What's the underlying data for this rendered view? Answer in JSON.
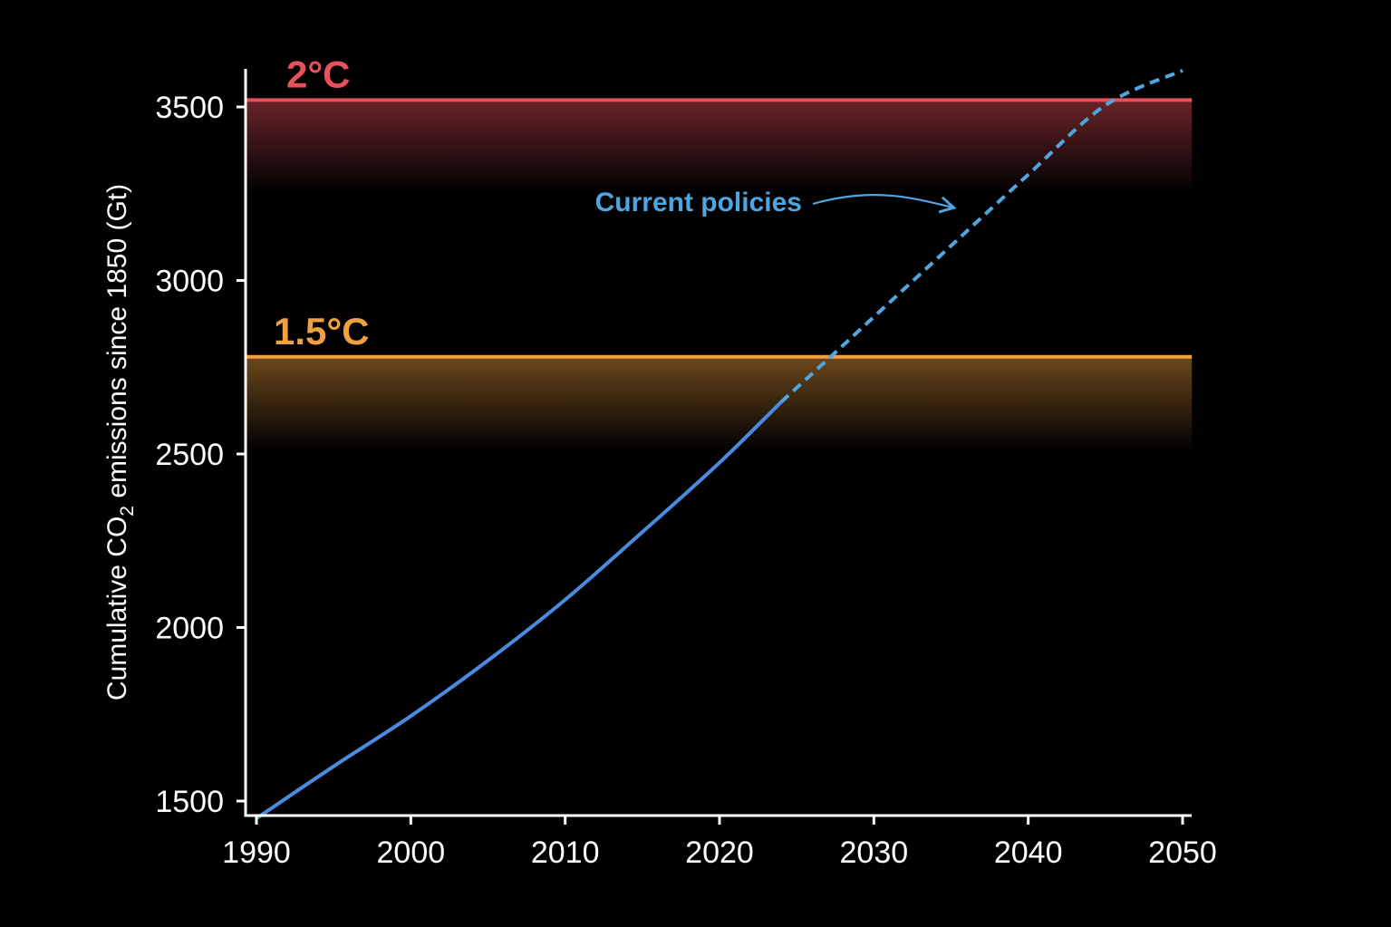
{
  "chart_data": {
    "type": "line",
    "title": "",
    "xlabel": "",
    "ylabel": {
      "prefix": "Cumulative CO",
      "subscript": "2",
      "suffix": " emissions since 1850 (Gt)"
    },
    "xlim": [
      1990,
      2050
    ],
    "ylim": [
      1475,
      3600
    ],
    "x_ticks": [
      1990,
      2000,
      2010,
      2020,
      2030,
      2040,
      2050
    ],
    "y_ticks": [
      1500,
      2000,
      2500,
      3000,
      3500
    ],
    "grid": false,
    "background": "#000000",
    "thresholds": [
      {
        "label": "2°C",
        "value": 3520,
        "color": "#e8505b",
        "band_to": 3250,
        "x_end": 2050.6
      },
      {
        "label": "1.5°C",
        "value": 2780,
        "color": "#f0a040",
        "band_to": 2510,
        "x_end": 2050.6
      }
    ],
    "series": [
      {
        "style": "solid",
        "color": "#4a8be0",
        "x": [
          1990,
          1995,
          2000,
          2005,
          2010,
          2015,
          2020,
          2024
        ],
        "y": [
          1450,
          1600,
          1745,
          1905,
          2080,
          2275,
          2475,
          2650
        ]
      },
      {
        "name": "Current policies",
        "style": "dashed",
        "color": "#4fa6df",
        "x": [
          2024,
          2027.2,
          2030,
          2035,
          2040,
          2045,
          2050
        ],
        "y": [
          2650,
          2780,
          2895,
          3100,
          3305,
          3505,
          3605
        ]
      }
    ],
    "annotations": [
      {
        "text": "Current policies",
        "color": "#4fa6df",
        "points_to": [
          2035,
          3100
        ]
      }
    ]
  }
}
